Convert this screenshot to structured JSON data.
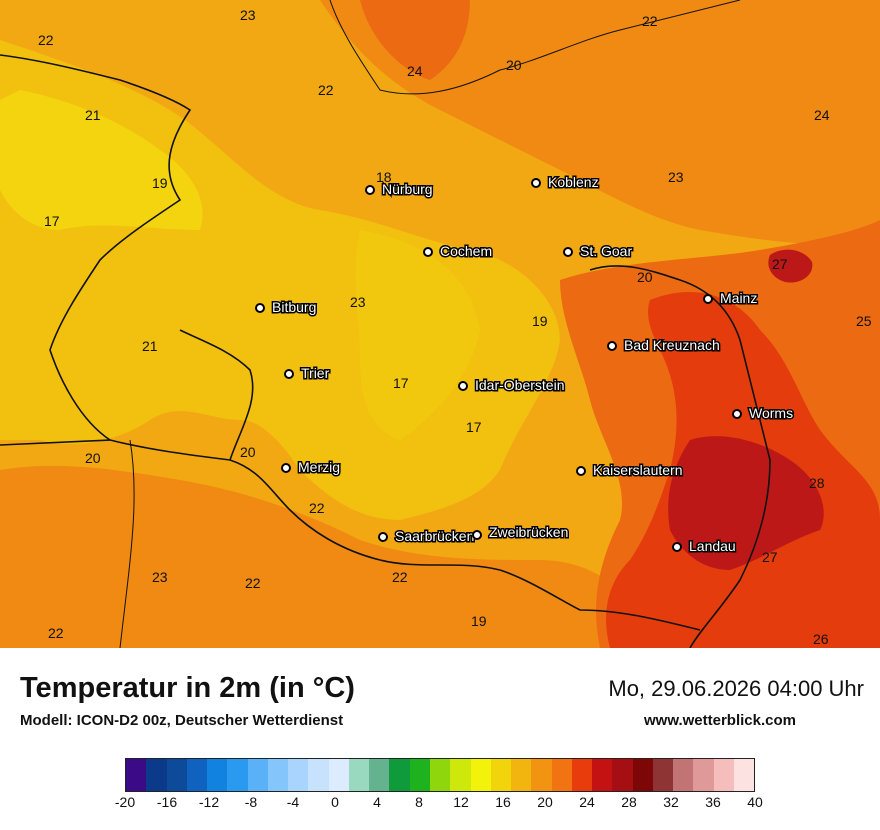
{
  "footer": {
    "title": "Temperatur in 2m (in °C)",
    "model": "Modell: ICON-D2 00z, Deutscher Wetterdienst",
    "datetime": "Mo, 29.06.2026 04:00 Uhr",
    "website": "www.wetterblick.com"
  },
  "legend": {
    "ticks": [
      "-20",
      "-16",
      "-12",
      "-8",
      "-4",
      "0",
      "4",
      "8",
      "12",
      "16",
      "20",
      "24",
      "28",
      "32",
      "36",
      "40"
    ],
    "colors": [
      "#3b0a86",
      "#0b3a8a",
      "#0d4a9a",
      "#0f62c0",
      "#1282e0",
      "#2a9af0",
      "#5ab1f7",
      "#84c5fb",
      "#a8d4fd",
      "#c6e2fd",
      "#dcecfe",
      "#98d9bf",
      "#64b38e",
      "#0f9a3b",
      "#1fb21f",
      "#8fd60d",
      "#cde80a",
      "#f2f20a",
      "#f2d40c",
      "#f2b40e",
      "#f29312",
      "#f27312",
      "#e83c0c",
      "#c41212",
      "#a50f14",
      "#7d0606",
      "#8f3434",
      "#c27474",
      "#e09999",
      "#f6bdbd",
      "#fde2e2"
    ]
  },
  "cities": [
    {
      "name": "Nürburg"
    },
    {
      "name": "Koblenz"
    },
    {
      "name": "Cochem"
    },
    {
      "name": "St. Goar"
    },
    {
      "name": "Mainz"
    },
    {
      "name": "Bitburg"
    },
    {
      "name": "Bad Kreuznach"
    },
    {
      "name": "Trier"
    },
    {
      "name": "Idar-Oberstein"
    },
    {
      "name": "Worms"
    },
    {
      "name": "Merzig"
    },
    {
      "name": "Kaiserslautern"
    },
    {
      "name": "Saarbrücken"
    },
    {
      "name": "Zweibrücken"
    },
    {
      "name": "Landau"
    }
  ],
  "values": [
    "23",
    "22",
    "22",
    "24",
    "20",
    "22",
    "21",
    "24",
    "18",
    "19",
    "23",
    "17",
    "27",
    "20",
    "23",
    "25",
    "19",
    "21",
    "17",
    "17",
    "20",
    "20",
    "28",
    "22",
    "23",
    "22",
    "22",
    "27",
    "22",
    "19",
    "26"
  ],
  "map_colors": {
    "light": "#f2c00e",
    "mid": "#f2a812",
    "orange": "#f08a12",
    "deep": "#ec6a12",
    "red": "#e43c0c",
    "darkred": "#bc1818",
    "maroon": "#8a0a0a"
  }
}
